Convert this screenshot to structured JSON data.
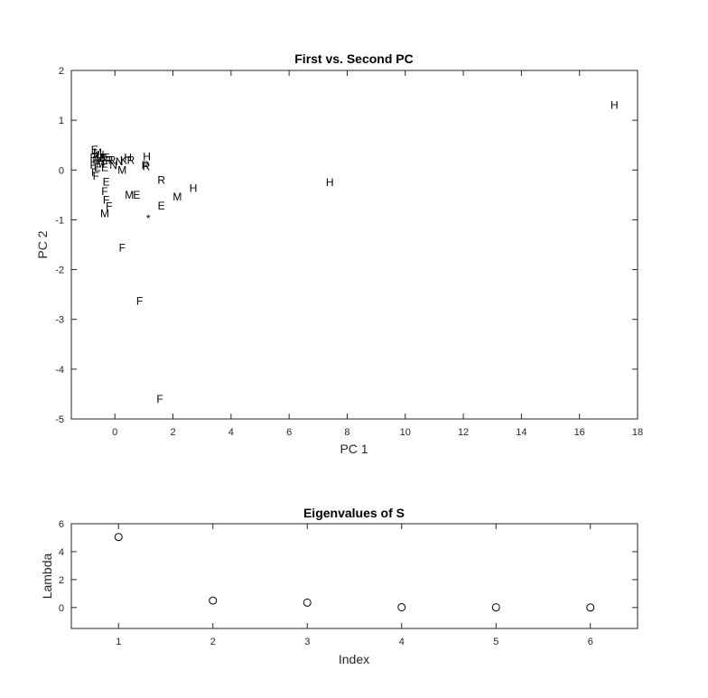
{
  "chart_data": [
    {
      "type": "scatter",
      "title": "First vs. Second PC",
      "xlabel": "PC 1",
      "ylabel": "PC 2",
      "xlim": [
        -1.5,
        18
      ],
      "ylim": [
        -5,
        2
      ],
      "xticks": [
        0,
        2,
        4,
        6,
        8,
        10,
        12,
        14,
        16,
        18
      ],
      "yticks": [
        -5,
        -4,
        -3,
        -2,
        -1,
        0,
        1,
        2
      ],
      "grid": false,
      "box": true,
      "points": [
        {
          "x": 17.2,
          "y": 1.3,
          "label": "H"
        },
        {
          "x": 7.4,
          "y": -0.25,
          "label": "H"
        },
        {
          "x": 2.7,
          "y": -0.37,
          "label": "H"
        },
        {
          "x": 2.15,
          "y": -0.54,
          "label": "M"
        },
        {
          "x": 1.6,
          "y": -0.2,
          "label": "R"
        },
        {
          "x": 1.6,
          "y": -0.72,
          "label": "E"
        },
        {
          "x": 1.1,
          "y": 0.27,
          "label": "H"
        },
        {
          "x": 1.05,
          "y": 0.1,
          "label": "R"
        },
        {
          "x": 1.08,
          "y": 0.07,
          "label": "R"
        },
        {
          "x": 0.55,
          "y": 0.2,
          "label": "R"
        },
        {
          "x": 0.45,
          "y": 0.25,
          "label": "H"
        },
        {
          "x": 0.3,
          "y": 0.2,
          "label": "K"
        },
        {
          "x": 0.15,
          "y": 0.17,
          "label": "N"
        },
        {
          "x": 0.25,
          "y": 0.0,
          "label": "M"
        },
        {
          "x": 0.5,
          "y": -0.5,
          "label": "M"
        },
        {
          "x": 0.75,
          "y": -0.5,
          "label": "E"
        },
        {
          "x": -0.2,
          "y": 0.2,
          "label": "R"
        },
        {
          "x": -0.35,
          "y": 0.05,
          "label": "E"
        },
        {
          "x": -0.3,
          "y": -0.24,
          "label": "E"
        },
        {
          "x": -0.35,
          "y": -0.43,
          "label": "F"
        },
        {
          "x": -0.3,
          "y": -0.6,
          "label": "F"
        },
        {
          "x": -0.2,
          "y": -0.73,
          "label": "F"
        },
        {
          "x": -0.35,
          "y": -0.87,
          "label": "M"
        },
        {
          "x": 0.25,
          "y": -1.56,
          "label": "F"
        },
        {
          "x": 0.85,
          "y": -2.63,
          "label": "F"
        },
        {
          "x": 1.55,
          "y": -4.6,
          "label": "F"
        },
        {
          "x": 1.15,
          "y": -0.97,
          "label": "*"
        },
        {
          "x": -0.7,
          "y": 0.4,
          "label": "E"
        },
        {
          "x": -0.6,
          "y": 0.35,
          "label": "M"
        },
        {
          "x": -0.5,
          "y": 0.3,
          "label": "H"
        },
        {
          "x": -0.4,
          "y": 0.25,
          "label": "R"
        },
        {
          "x": -0.75,
          "y": 0.25,
          "label": "F"
        },
        {
          "x": -0.65,
          "y": 0.2,
          "label": "E"
        },
        {
          "x": -0.55,
          "y": 0.22,
          "label": "M"
        },
        {
          "x": -0.45,
          "y": 0.18,
          "label": "R"
        },
        {
          "x": -0.3,
          "y": 0.25,
          "label": "E"
        },
        {
          "x": -0.1,
          "y": 0.2,
          "label": "R"
        },
        {
          "x": -0.75,
          "y": 0.1,
          "label": "F"
        },
        {
          "x": -0.6,
          "y": 0.05,
          "label": "E"
        },
        {
          "x": -0.5,
          "y": 0.12,
          "label": "M"
        },
        {
          "x": -0.05,
          "y": 0.1,
          "label": "N"
        },
        {
          "x": -0.7,
          "y": -0.05,
          "label": "F"
        },
        {
          "x": -0.65,
          "y": -0.12,
          "label": "F"
        }
      ]
    },
    {
      "type": "scatter",
      "title": "Eigenvalues of S",
      "xlabel": "Index",
      "ylabel": "Lambda",
      "xlim": [
        0.5,
        6.5
      ],
      "ylim": [
        -1.5,
        6
      ],
      "xticks": [
        1,
        2,
        3,
        4,
        5,
        6
      ],
      "yticks": [
        0,
        2,
        4,
        6
      ],
      "marker": "circle",
      "grid": false,
      "box": true,
      "x": [
        1,
        2,
        3,
        4,
        5,
        6
      ],
      "y": [
        5.05,
        0.5,
        0.35,
        0.02,
        0.01,
        0.0
      ]
    }
  ]
}
